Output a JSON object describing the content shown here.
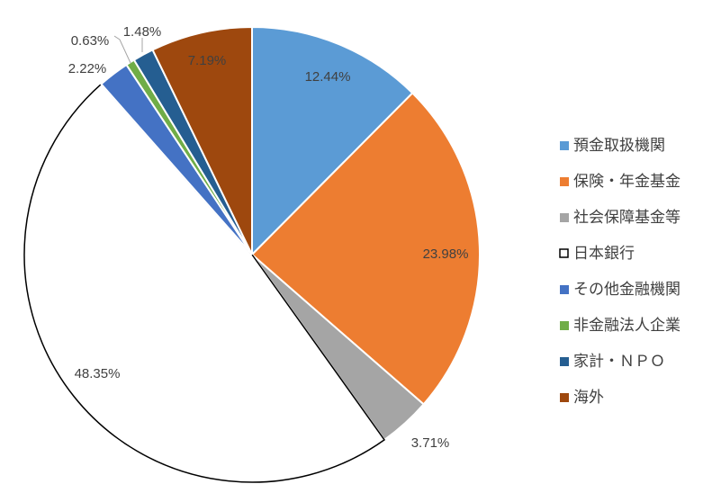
{
  "chart_data": {
    "type": "pie",
    "title": "",
    "categories": [
      "預金取扱機関",
      "保険・年金基金",
      "社会保障基金等",
      "日本銀行",
      "その他金融機関",
      "非金融法人企業",
      "家計・ＮＰＯ",
      "海外"
    ],
    "values": [
      12.44,
      23.98,
      3.71,
      48.35,
      2.22,
      0.63,
      1.48,
      7.19
    ],
    "labels": [
      "12.44%",
      "23.98%",
      "3.71%",
      "48.35%",
      "2.22%",
      "0.63%",
      "1.48%",
      "7.19%"
    ],
    "colors": [
      "#5b9bd5",
      "#ed7d31",
      "#a5a5a5",
      "#ffffff",
      "#4472c4",
      "#70ad47",
      "#255e91",
      "#9e480e"
    ],
    "start_angle": "12 o'clock",
    "direction": "clockwise",
    "legend_position": "right"
  }
}
